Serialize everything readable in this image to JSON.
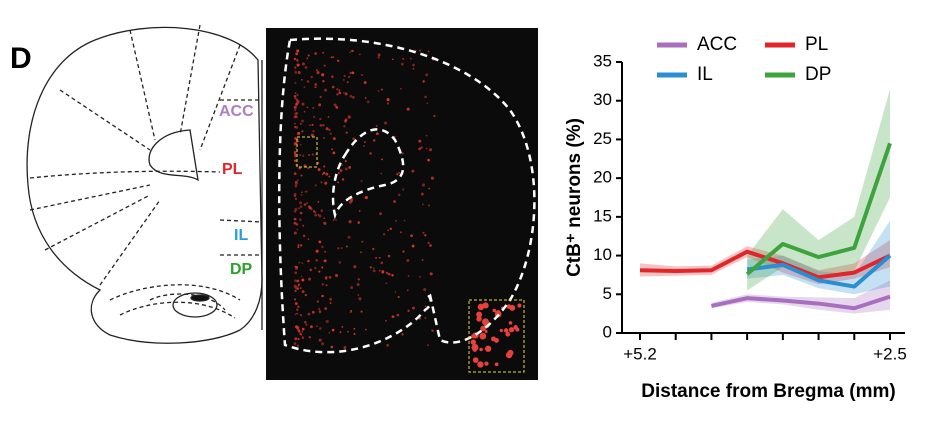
{
  "panel_label": "D",
  "diagram_labels": [
    {
      "text": "ACC",
      "color": "#b07cc6"
    },
    {
      "text": "PL",
      "color": "#e0262b"
    },
    {
      "text": "IL",
      "color": "#2a9fd8"
    },
    {
      "text": "DP",
      "color": "#2ca02c"
    }
  ],
  "chart_data": {
    "type": "line",
    "xlabel": "Distance from Bregma (mm)",
    "ylabel": "CtB⁺ neurons (%)",
    "categories": [
      "+5.2",
      null,
      null,
      null,
      null,
      null,
      null,
      "+2.5"
    ],
    "ylim": [
      0,
      35
    ],
    "yticks": [
      0,
      5,
      10,
      15,
      20,
      25,
      30,
      35
    ],
    "series": [
      {
        "name": "ACC",
        "color": "#a86fbf",
        "values": [
          null,
          null,
          3.5,
          4.5,
          4.2,
          3.8,
          3.2,
          4.7
        ],
        "lower": [
          null,
          null,
          3.2,
          4.0,
          3.7,
          3.0,
          2.5,
          3.0
        ],
        "upper": [
          null,
          null,
          3.9,
          5.0,
          4.7,
          4.6,
          4.5,
          6.8
        ]
      },
      {
        "name": "PL",
        "color": "#e0262b",
        "values": [
          8.1,
          8.0,
          8.1,
          10.5,
          9.0,
          7.2,
          7.8,
          10.0
        ],
        "lower": [
          7.3,
          7.4,
          7.5,
          9.8,
          7.8,
          6.3,
          7.0,
          8.5
        ],
        "upper": [
          9.0,
          8.6,
          8.7,
          11.2,
          10.0,
          8.1,
          9.0,
          12.0
        ]
      },
      {
        "name": "IL",
        "color": "#2a8fd0",
        "values": [
          null,
          null,
          null,
          8.2,
          8.8,
          6.8,
          6.0,
          10.0
        ],
        "lower": [
          null,
          null,
          null,
          7.0,
          7.5,
          5.8,
          5.0,
          6.0
        ],
        "upper": [
          null,
          null,
          null,
          9.5,
          10.0,
          8.0,
          7.5,
          14.5
        ]
      },
      {
        "name": "DP",
        "color": "#3da33d",
        "values": [
          null,
          null,
          null,
          7.6,
          11.5,
          9.8,
          11.0,
          24.5
        ],
        "lower": [
          null,
          null,
          null,
          5.5,
          8.5,
          7.5,
          8.0,
          17.5
        ],
        "upper": [
          null,
          null,
          null,
          10.0,
          16.0,
          12.0,
          15.0,
          31.5
        ]
      }
    ]
  }
}
